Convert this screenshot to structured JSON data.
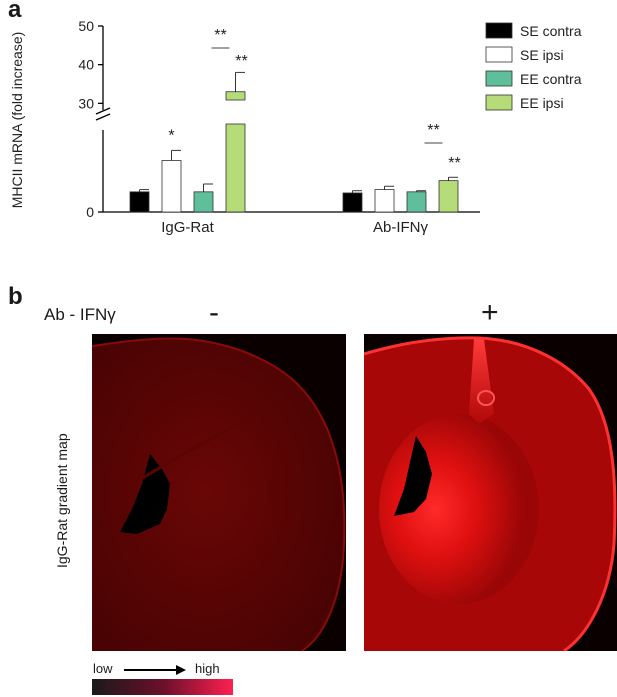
{
  "panel_a": {
    "letter": "a"
  },
  "panel_b": {
    "letter": "b",
    "condition_label": "Ab - IFNγ",
    "minus_label": "-",
    "plus_label": "+",
    "side_label": "IgG-Rat gradient map",
    "scale": {
      "low": "low",
      "high": "high"
    }
  },
  "chart_data": {
    "type": "bar",
    "ylabel": "MHCII mRNA (fold increase)",
    "categories": [
      "IgG-Rat",
      "Ab-IFNγ"
    ],
    "yticks": [
      "0",
      "30",
      "40",
      "50"
    ],
    "y_axis_break": true,
    "series": [
      {
        "name": "SE contra",
        "color": "#000000",
        "values": [
          1.8,
          1.7
        ],
        "errors": [
          0.2,
          0.2
        ]
      },
      {
        "name": "SE ipsi",
        "color": "#ffffff",
        "values": [
          4.6,
          2.0
        ],
        "errors": [
          0.9,
          0.3
        ]
      },
      {
        "name": "EE contra",
        "color": "#5fbf9b",
        "values": [
          1.8,
          1.8
        ],
        "errors": [
          0.7,
          0.1
        ]
      },
      {
        "name": "EE ipsi",
        "color": "#b5dc78",
        "values": [
          33.0,
          2.8
        ],
        "errors": [
          5.0,
          0.3
        ]
      }
    ],
    "annotations": [
      {
        "category": 0,
        "series": 1,
        "text": "*"
      },
      {
        "category": 0,
        "series": 3,
        "text": "**"
      },
      {
        "category": 0,
        "series": 3,
        "text": "**",
        "bracket": true
      },
      {
        "category": 1,
        "series": 3,
        "text": "**"
      },
      {
        "category": 1,
        "series": 3,
        "text": "**",
        "bracket": true
      }
    ],
    "legend_position": "top-right"
  }
}
